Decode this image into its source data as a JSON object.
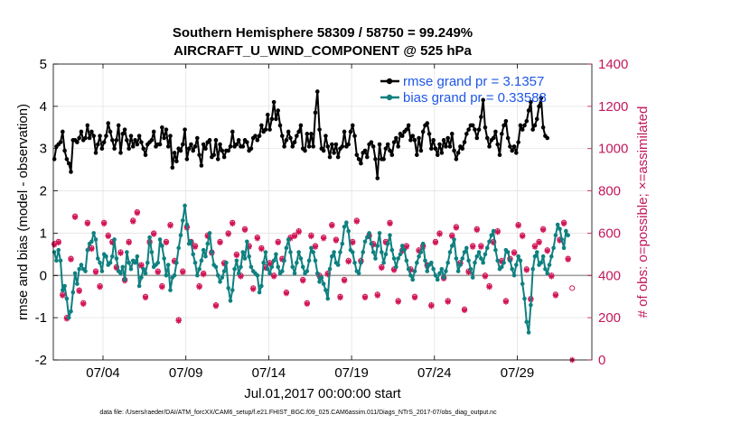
{
  "colors": {
    "rmse": "#000000",
    "bias": "#0f8080",
    "obs": "#d01556",
    "axis_right": "#c2185b",
    "legend_text": "#1f57e6",
    "zero_line": "#a0a0a0",
    "grid": "#e3e3e3"
  },
  "footer": "data file: /Users/raeder/DAI/ATM_forcXX/CAM6_setup/f.e21.FHIST_BGC.f09_025.CAM6assim.011/Diags_NTrS_2017-07/obs_diag_output.nc",
  "chart_data": {
    "type": "line",
    "title": "Southern Hemisphere 58309 / 58750 = 99.249%",
    "subtitle": "AIRCRAFT_U_WIND_COMPONENT @ 525 hPa",
    "xlabel": "Jul.01,2017 00:00:00 start",
    "ylabel": "rmse and bias (model - observation)",
    "ylabel_right": "# of obs: o=possible; ×=assimilated",
    "xlim": [
      1,
      33.5
    ],
    "ylim": [
      -2,
      5
    ],
    "ylim_right": [
      0,
      1400
    ],
    "x_ticks": [
      4,
      9,
      14,
      19,
      24,
      29
    ],
    "x_tick_labels": [
      "07/04",
      "07/09",
      "07/14",
      "07/19",
      "07/24",
      "07/29"
    ],
    "y_ticks": [
      -2,
      -1,
      0,
      1,
      2,
      3,
      4,
      5
    ],
    "y_tick_labels": [
      "-2",
      "-1",
      "0",
      "1",
      "2",
      "3",
      "4",
      "5"
    ],
    "y_ticks_right": [
      0,
      200,
      400,
      600,
      800,
      1000,
      1200,
      1400
    ],
    "y_tick_labels_right": [
      "0",
      "200",
      "400",
      "600",
      "800",
      "1000",
      "1200",
      "1400"
    ],
    "grid": true,
    "legend": [
      "rmse grand pr = 3.1357",
      "bias grand pr = 0.33588"
    ],
    "legend_position": "top-right",
    "bin_hours": 3,
    "series": [
      {
        "name": "rmse",
        "axis": "left",
        "marker": "filled-circle",
        "x_start": 1.0625,
        "x_step": 0.125,
        "values": [
          2.75,
          3.05,
          3.1,
          3.15,
          3.4,
          2.95,
          2.75,
          2.65,
          2.45,
          3.2,
          3.2,
          3.15,
          3.25,
          3.4,
          3.2,
          3.25,
          3.55,
          3.25,
          3.4,
          3.3,
          2.9,
          3.1,
          3.3,
          3.0,
          3.15,
          3.3,
          3.6,
          3.4,
          3.2,
          3.0,
          3.2,
          3.55,
          2.9,
          3.35,
          3.45,
          3.2,
          3.0,
          3.3,
          3.05,
          3.2,
          3.1,
          3.3,
          3.15,
          3.0,
          2.85,
          3.1,
          3.15,
          3.2,
          3.4,
          3.05,
          3.1,
          3.1,
          3.5,
          3.25,
          3.45,
          3.05,
          3.3,
          2.55,
          2.9,
          2.7,
          3.0,
          2.95,
          3.1,
          3.45,
          2.75,
          3.0,
          3.1,
          2.95,
          3.05,
          3.25,
          2.85,
          2.6,
          3.1,
          3.0,
          3.15,
          3.2,
          2.8,
          2.85,
          3.2,
          2.75,
          3.1,
          2.95,
          2.8,
          2.95,
          2.95,
          3.05,
          3.4,
          3.05,
          3.1,
          3.2,
          3.05,
          3.05,
          3.2,
          3.15,
          2.95,
          3.0,
          3.25,
          3.3,
          3.2,
          3.3,
          3.55,
          3.4,
          3.45,
          3.8,
          3.45,
          3.7,
          4.1,
          3.7,
          3.9,
          3.55,
          3.3,
          3.05,
          3.2,
          3.4,
          3.25,
          3.05,
          3.15,
          3.3,
          3.4,
          3.55,
          3.0,
          2.95,
          3.35,
          3.05,
          3.35,
          3.05,
          3.85,
          4.35,
          3.45,
          3.0,
          2.95,
          3.3,
          3.05,
          2.8,
          3.1,
          2.9,
          3.1,
          2.8,
          3.0,
          3.05,
          3.4,
          3.05,
          3.1,
          3.4,
          3.55,
          3.3,
          2.85,
          2.75,
          2.65,
          2.9,
          2.95,
          2.8,
          3.1,
          3.15,
          3.05,
          2.75,
          2.3,
          3.1,
          2.75,
          2.75,
          3.0,
          3.1,
          2.95,
          2.85,
          3.15,
          3.25,
          3.05,
          3.35,
          3.3,
          3.4,
          3.45,
          3.55,
          3.2,
          3.3,
          3.2,
          2.85,
          3.25,
          2.95,
          3.4,
          3.55,
          3.6,
          3.35,
          3.0,
          3.2,
          3.0,
          2.85,
          3.1,
          2.9,
          3.2,
          3.05,
          3.25,
          3.05,
          3.35,
          2.95,
          2.75,
          2.9,
          3.05,
          3.0,
          3.15,
          3.35,
          3.45,
          3.55,
          3.55,
          3.45,
          3.25,
          3.45,
          3.75,
          4.15,
          3.5,
          3.25,
          3.05,
          3.2,
          3.25,
          3.4,
          3.1,
          2.85,
          3.35,
          3.55,
          3.65,
          3.25,
          3.05,
          2.95,
          3.05,
          2.9,
          3.15,
          3.55,
          3.45,
          3.55,
          3.65,
          3.9,
          4.1,
          3.45,
          3.55,
          3.7,
          4.0,
          4.2,
          3.5,
          3.3,
          3.25
        ]
      },
      {
        "name": "bias",
        "axis": "left",
        "marker": "filled-circle",
        "x_start": 1.0625,
        "x_step": 0.125,
        "values": [
          0.55,
          0.35,
          0.6,
          0.35,
          -0.35,
          -0.25,
          -0.55,
          -1.0,
          -0.85,
          -0.4,
          0.05,
          -0.2,
          0.15,
          0.25,
          0.15,
          0.1,
          0.6,
          0.75,
          0.8,
          1.0,
          0.85,
          0.4,
          0.3,
          0.1,
          0.5,
          0.45,
          0.25,
          0.3,
          0.45,
          0.85,
          0.4,
          0.1,
          0.05,
          0.2,
          -0.1,
          0.55,
          0.3,
          0.15,
          0.35,
          0.3,
          0.45,
          -0.25,
          -0.05,
          0.15,
          0.05,
          0.3,
          0.9,
          0.55,
          0.2,
          0.25,
          0.3,
          0.85,
          0.7,
          0.4,
          0.0,
          0.25,
          -0.35,
          -0.05,
          0.0,
          0.3,
          0.65,
          0.95,
          1.3,
          1.65,
          1.2,
          0.75,
          0.8,
          0.5,
          0.3,
          0.0,
          0.15,
          0.35,
          0.6,
          0.45,
          0.75,
          1.0,
          0.55,
          0.25,
          0.2,
          0.0,
          -0.15,
          -0.05,
          0.1,
          0.3,
          -0.3,
          -0.6,
          -0.35,
          0.15,
          0.35,
          0.05,
          0.2,
          0.55,
          0.4,
          0.8,
          0.45,
          0.2,
          0.1,
          0.05,
          0.0,
          -0.4,
          -0.25,
          0.3,
          0.55,
          0.15,
          0.05,
          0.2,
          0.35,
          0.5,
          0.2,
          0.05,
          0.1,
          0.35,
          0.65,
          0.85,
          0.55,
          0.2,
          0.05,
          0.3,
          0.55,
          0.4,
          0.2,
          0.05,
          0.1,
          0.35,
          0.65,
          0.55,
          0.35,
          0.05,
          -0.15,
          -0.05,
          -0.2,
          -0.35,
          -0.55,
          0.15,
          0.45,
          0.55,
          0.3,
          0.25,
          0.55,
          0.75,
          1.15,
          1.25,
          1.05,
          0.6,
          0.55,
          0.3,
          0.1,
          0.05,
          0.3,
          0.55,
          0.8,
          0.9,
          1.0,
          0.75,
          0.55,
          0.4,
          0.7,
          1.0,
          0.55,
          0.3,
          0.5,
          0.75,
          0.95,
          0.6,
          0.4,
          0.2,
          0.4,
          0.5,
          0.7,
          0.6,
          0.35,
          0.15,
          0.0,
          -0.1,
          0.1,
          0.3,
          0.45,
          0.55,
          0.75,
          0.35,
          0.1,
          0.25,
          0.3,
          0.15,
          0.0,
          -0.1,
          0.05,
          0.15,
          -0.05,
          0.1,
          0.3,
          0.55,
          0.7,
          0.85,
          0.4,
          0.1,
          0.25,
          0.4,
          0.55,
          0.65,
          0.35,
          0.15,
          -0.05,
          0.3,
          0.45,
          0.55,
          0.4,
          0.3,
          0.5,
          0.65,
          0.8,
          0.95,
          1.05,
          0.6,
          0.35,
          0.15,
          0.2,
          0.3,
          0.6,
          0.55,
          0.35,
          0.15,
          0.0,
          0.25,
          0.45,
          0.35,
          -0.2,
          -0.55,
          -1.1,
          -1.35,
          -0.7,
          0.15,
          0.45,
          0.55,
          0.25,
          0.3,
          0.45,
          0.15,
          0.05,
          0.25,
          0.45,
          0.65,
          0.95,
          1.2,
          1.1,
          0.85,
          0.65,
          1.05,
          0.95
        ]
      },
      {
        "name": "obs possible",
        "axis": "right",
        "marker": "open-circle",
        "x_start": 1.0625,
        "x_step": 0.25,
        "values": [
          550,
          560,
          310,
          200,
          480,
          680,
          330,
          270,
          650,
          530,
          420,
          350,
          650,
          590,
          560,
          440,
          510,
          380,
          560,
          660,
          700,
          450,
          300,
          560,
          600,
          420,
          350,
          560,
          640,
          470,
          190,
          420,
          630,
          560,
          540,
          350,
          410,
          590,
          510,
          260,
          560,
          460,
          600,
          650,
          500,
          400,
          620,
          540,
          340,
          580,
          530,
          440,
          460,
          400,
          560,
          480,
          320,
          580,
          590,
          610,
          380,
          270,
          590,
          540,
          400,
          580,
          410,
          640,
          570,
          300,
          380,
          470,
          560,
          660,
          470,
          300,
          590,
          550,
          310,
          440,
          560,
          650,
          430,
          280,
          520,
          540,
          430,
          300,
          520,
          540,
          450,
          260,
          560,
          600,
          390,
          280,
          590,
          630,
          460,
          240,
          420,
          540,
          620,
          540,
          400,
          350,
          560,
          610,
          470,
          280,
          480,
          510,
          640,
          590,
          430,
          290,
          540,
          560,
          620,
          520,
          400,
          310,
          570,
          650,
          480,
          340
        ]
      },
      {
        "name": "obs assimilated",
        "axis": "right",
        "marker": "asterisk",
        "x_start": 1.0625,
        "x_step": 0.25,
        "values": [
          545,
          555,
          305,
          195,
          475,
          675,
          325,
          265,
          645,
          525,
          415,
          345,
          645,
          585,
          555,
          435,
          505,
          375,
          555,
          655,
          695,
          445,
          295,
          555,
          595,
          415,
          345,
          555,
          635,
          465,
          185,
          415,
          625,
          555,
          535,
          345,
          405,
          585,
          505,
          255,
          555,
          455,
          595,
          645,
          495,
          395,
          615,
          535,
          335,
          575,
          525,
          435,
          455,
          395,
          555,
          475,
          315,
          575,
          585,
          605,
          375,
          265,
          585,
          535,
          395,
          575,
          405,
          635,
          565,
          295,
          375,
          465,
          555,
          655,
          465,
          295,
          585,
          545,
          305,
          435,
          555,
          645,
          425,
          275,
          515,
          535,
          425,
          295,
          515,
          535,
          445,
          255,
          555,
          595,
          385,
          275,
          585,
          625,
          455,
          235,
          415,
          535,
          615,
          535,
          395,
          345,
          555,
          605,
          465,
          275,
          475,
          505,
          635,
          585,
          425,
          285,
          535,
          555,
          615,
          515,
          395,
          305,
          565,
          645,
          475,
          0
        ]
      }
    ]
  }
}
